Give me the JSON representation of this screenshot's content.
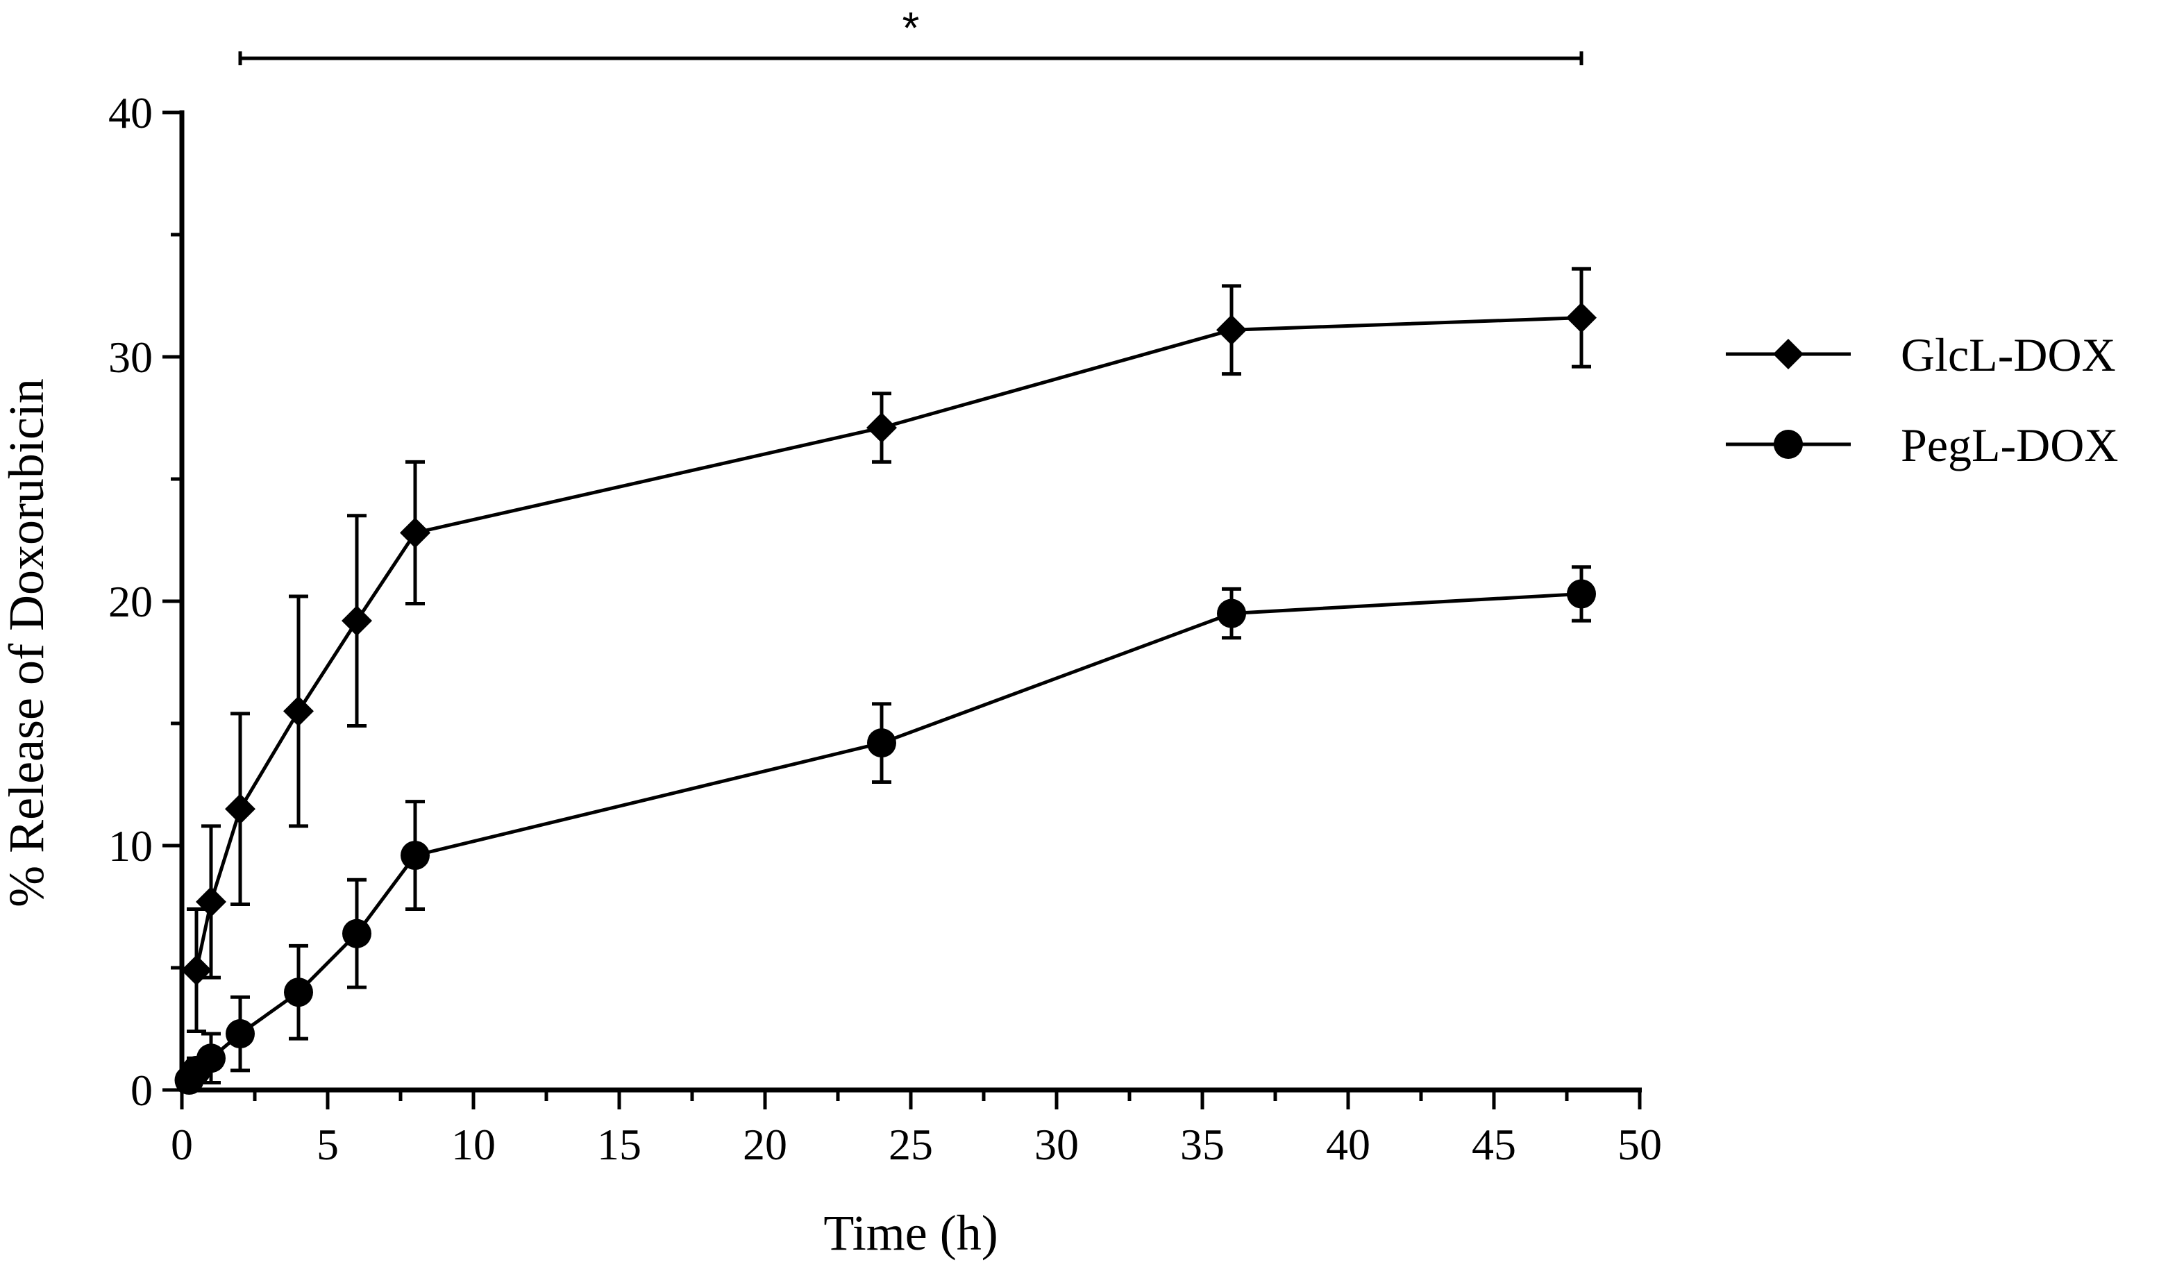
{
  "chart_data": {
    "type": "line",
    "title": "",
    "xlabel": "Time (h)",
    "ylabel": "% Release of Doxorubicin",
    "xlim": [
      0,
      50
    ],
    "ylim": [
      0,
      40
    ],
    "x_ticks": [
      "0",
      "5",
      "10",
      "15",
      "20",
      "25",
      "30",
      "35",
      "40",
      "45",
      "50"
    ],
    "y_ticks": [
      "0",
      "10",
      "20",
      "30",
      "40"
    ],
    "grid": false,
    "legend_position": "right",
    "significance": {
      "label": "*",
      "x_start": 2,
      "x_end": 48
    },
    "series": [
      {
        "name": "GlcL-DOX",
        "marker": "diamond",
        "color": "#000000",
        "points": [
          {
            "x": 0.5,
            "y": 4.9,
            "err": 2.5
          },
          {
            "x": 1,
            "y": 7.7,
            "err": 3.1
          },
          {
            "x": 2,
            "y": 11.5,
            "err": 3.9
          },
          {
            "x": 4,
            "y": 15.5,
            "err": 4.7
          },
          {
            "x": 6,
            "y": 19.2,
            "err": 4.3
          },
          {
            "x": 8,
            "y": 22.8,
            "err": 2.9
          },
          {
            "x": 24,
            "y": 27.1,
            "err": 1.4
          },
          {
            "x": 36,
            "y": 31.1,
            "err": 1.8
          },
          {
            "x": 48,
            "y": 31.6,
            "err": 2.0
          }
        ]
      },
      {
        "name": "PegL-DOX",
        "marker": "circle",
        "color": "#000000",
        "points": [
          {
            "x": 0.25,
            "y": 0.4,
            "err": 0.3
          },
          {
            "x": 0.5,
            "y": 0.8,
            "err": 0.5
          },
          {
            "x": 1,
            "y": 1.3,
            "err": 1.0
          },
          {
            "x": 2,
            "y": 2.3,
            "err": 1.5
          },
          {
            "x": 4,
            "y": 4.0,
            "err": 1.9
          },
          {
            "x": 6,
            "y": 6.4,
            "err": 2.2
          },
          {
            "x": 8,
            "y": 9.6,
            "err": 2.2
          },
          {
            "x": 24,
            "y": 14.2,
            "err": 1.6
          },
          {
            "x": 36,
            "y": 19.5,
            "err": 1.0
          },
          {
            "x": 48,
            "y": 20.3,
            "err": 1.1
          }
        ]
      }
    ]
  }
}
